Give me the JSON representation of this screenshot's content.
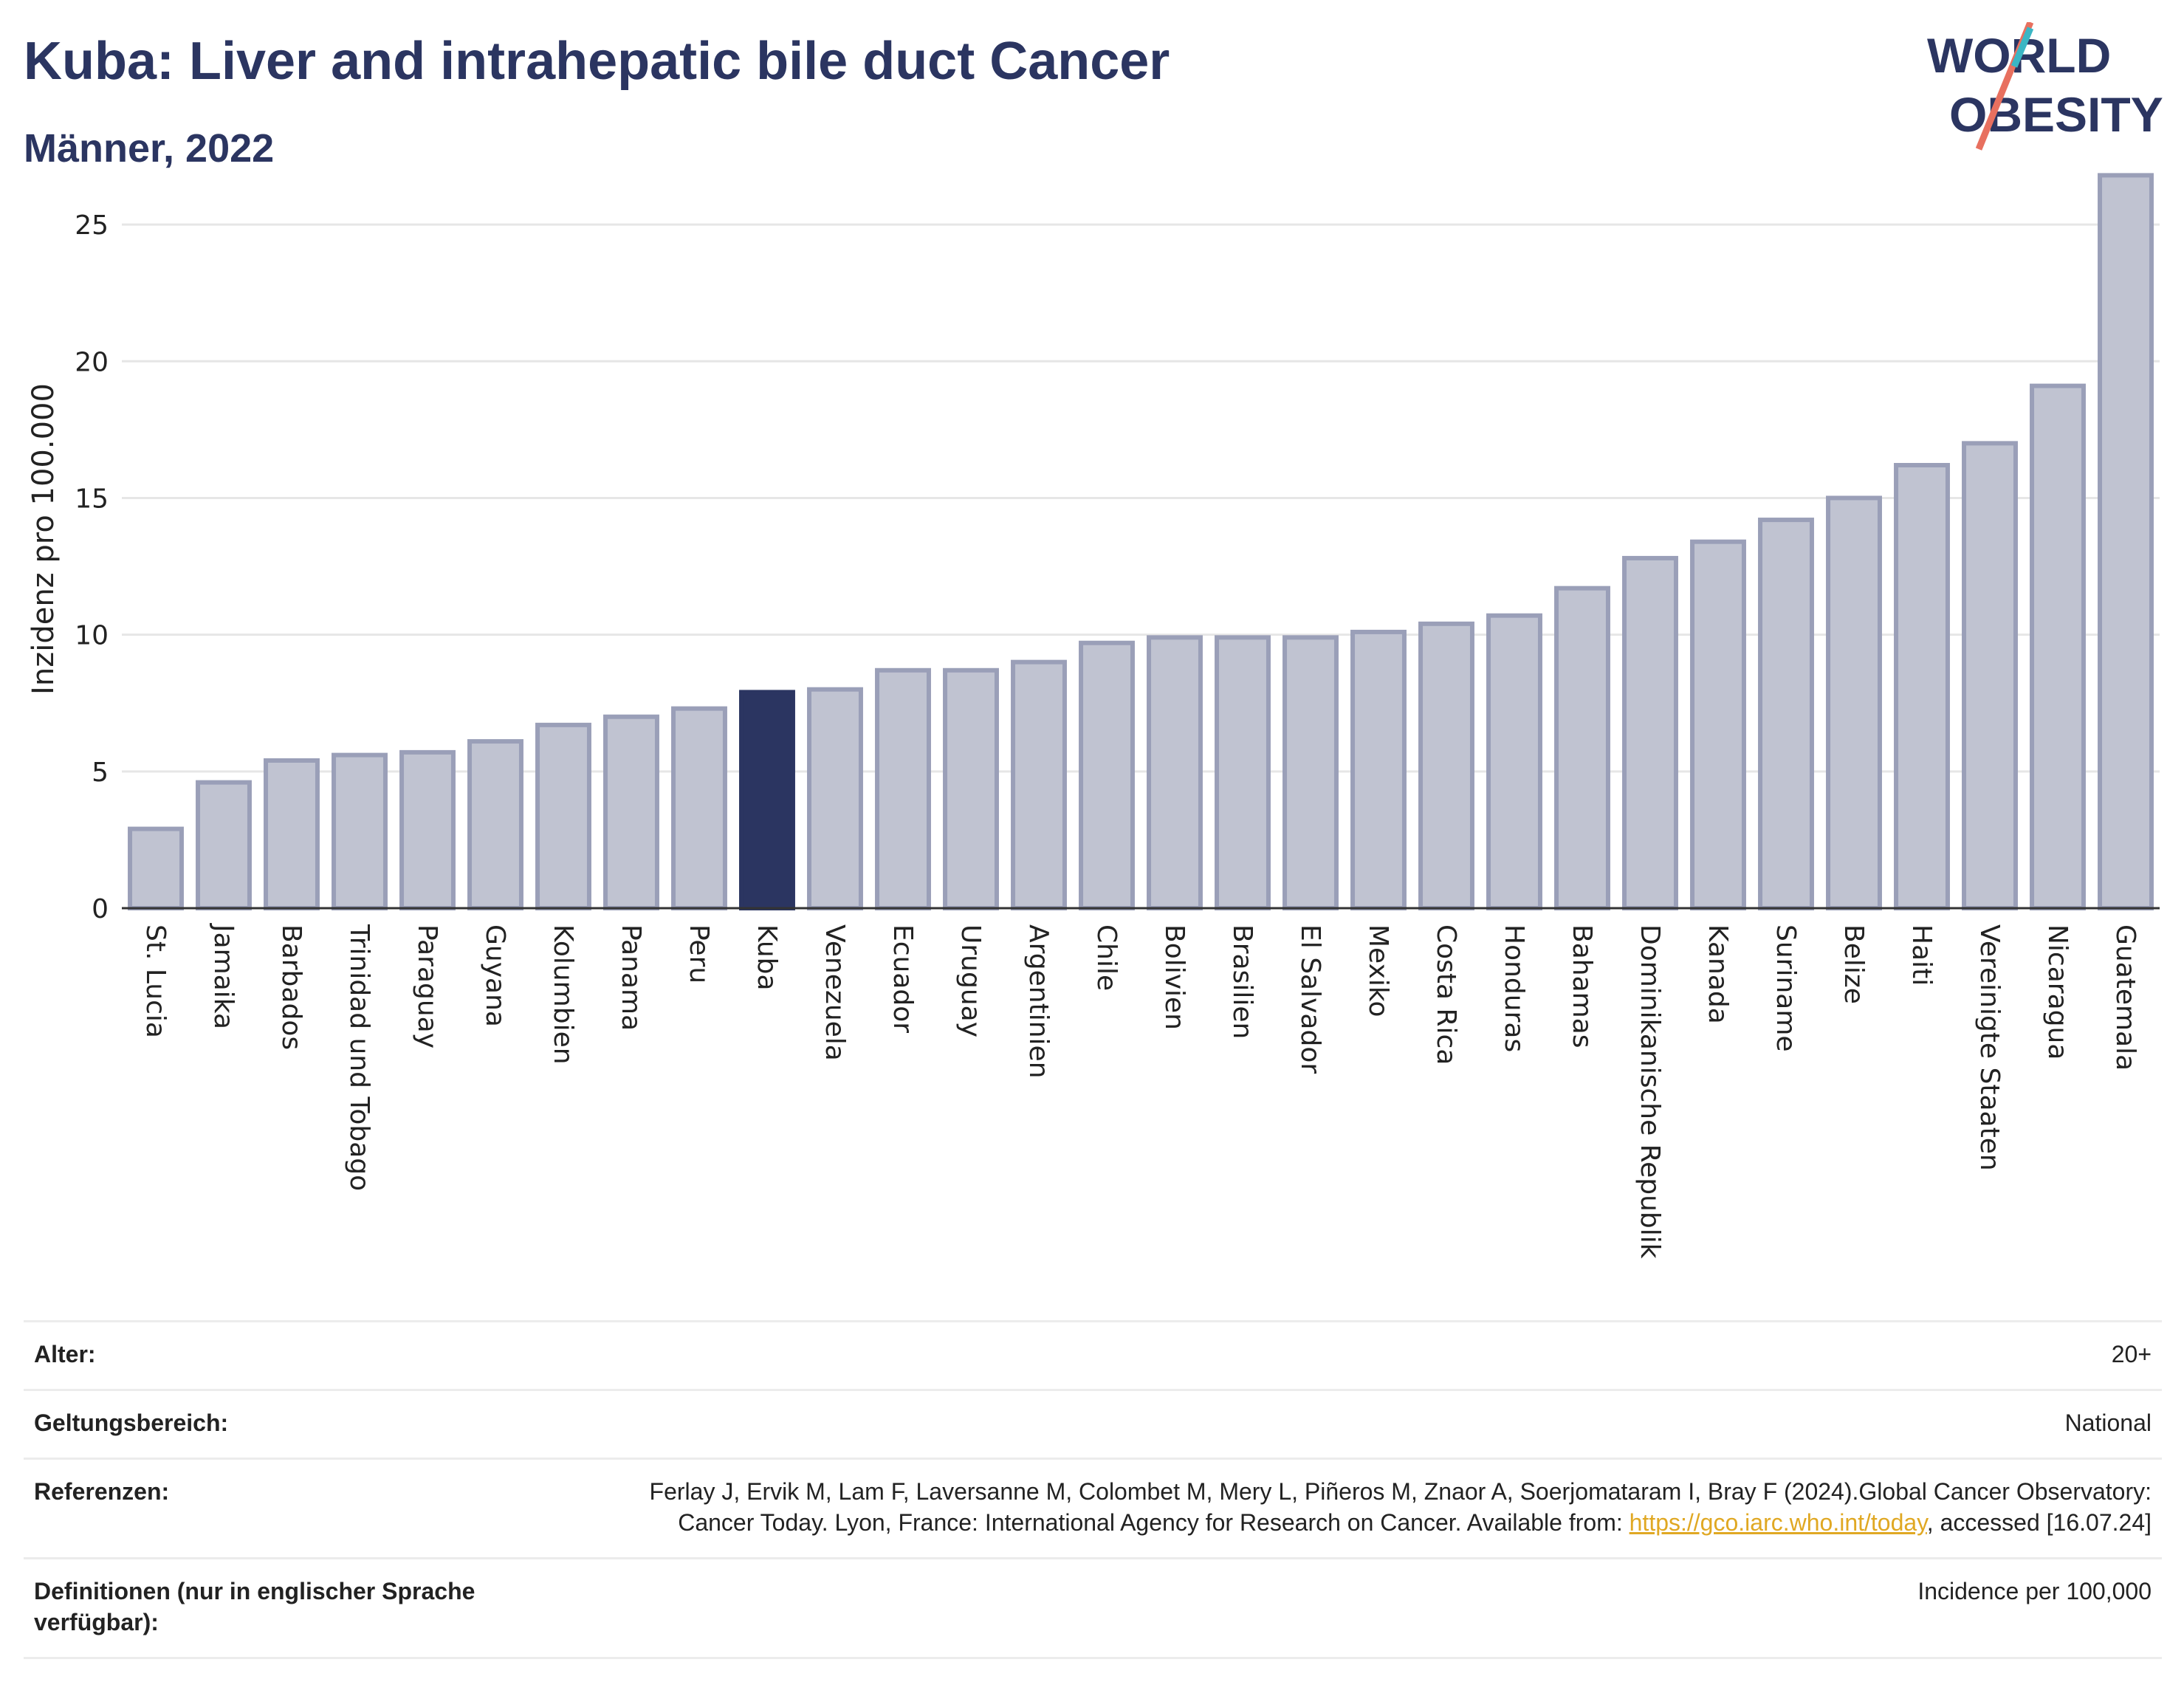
{
  "header": {
    "title": "Kuba: Liver and intrahepatic bile duct Cancer",
    "subtitle": "Männer, 2022"
  },
  "logo": {
    "line1": "WORLD",
    "line2": "OBESITY"
  },
  "colors": {
    "highlight": "#2b3561",
    "bar": "#c0c3d1",
    "bar_edge": "#9a9fb8",
    "grid": "#e6e6e6"
  },
  "chart_data": {
    "type": "bar",
    "ylabel": "Inzidenz pro 100.000",
    "ylim": [
      0,
      27
    ],
    "yticks": [
      0,
      5,
      10,
      15,
      20,
      25
    ],
    "highlight": "Kuba",
    "grid": true,
    "categories": [
      "St. Lucia",
      "Jamaika",
      "Barbados",
      "Trinidad und Tobago",
      "Paraguay",
      "Guyana",
      "Kolumbien",
      "Panama",
      "Peru",
      "Kuba",
      "Venezuela",
      "Ecuador",
      "Uruguay",
      "Argentinien",
      "Chile",
      "Bolivien",
      "Brasilien",
      "El Salvador",
      "Mexiko",
      "Costa Rica",
      "Honduras",
      "Bahamas",
      "Dominikanische Republik",
      "Kanada",
      "Suriname",
      "Belize",
      "Haiti",
      "Vereinigte Staaten",
      "Nicaragua",
      "Guatemala"
    ],
    "values": [
      2.9,
      4.6,
      5.4,
      5.6,
      5.7,
      6.1,
      6.7,
      7.0,
      7.3,
      7.9,
      8.0,
      8.7,
      8.7,
      9.0,
      9.7,
      9.9,
      9.9,
      9.9,
      10.1,
      10.4,
      10.7,
      11.7,
      12.8,
      13.4,
      14.2,
      15.0,
      16.2,
      17.0,
      19.1,
      26.8
    ]
  },
  "meta": [
    {
      "key": "Alter:",
      "value": "20+"
    },
    {
      "key": "Geltungsbereich:",
      "value": "National"
    },
    {
      "key": "Referenzen:",
      "value_pre": "Ferlay J, Ervik M, Lam F, Laversanne M, Colombet M, Mery L, Piñeros M, Znaor A, Soerjomataram I, Bray F (2024).Global Cancer Observatory: Cancer Today. Lyon, France: International Agency for Research on Cancer. Available from: ",
      "link": "https://gco.iarc.who.int/today",
      "value_post": ", accessed [16.07.24]"
    },
    {
      "key": "Definitionen (nur in englischer Sprache verfügbar):",
      "value": "Incidence per 100,000"
    }
  ]
}
